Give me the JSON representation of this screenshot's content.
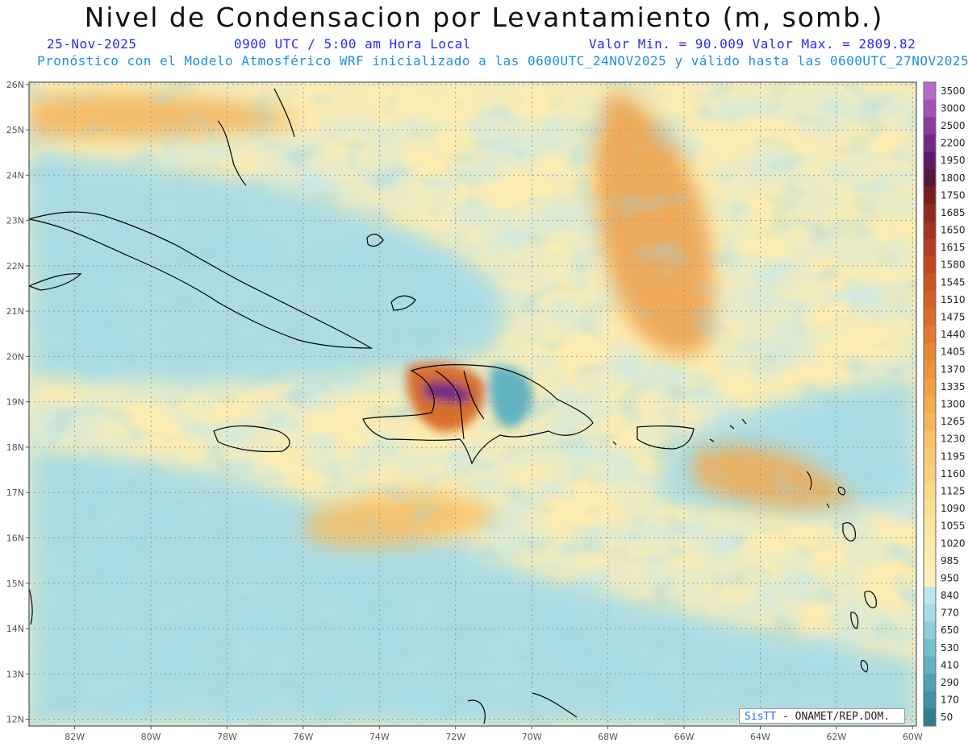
{
  "title": "Nivel de Condensacion por Levantamiento (m, somb.)",
  "header": {
    "date": "25-Nov-2025",
    "time": "0900 UTC / 5:00 am Hora Local",
    "min_max": "Valor Min. = 90.009  Valor Max. = 2809.82",
    "model_line": "Pronóstico con el Modelo Atmosférico WRF inicializado a las 0600UTC_24NOV2025 y válido hasta las  0600UTC_27NOV2025"
  },
  "stats": {
    "min": 90.009,
    "max": 2809.82
  },
  "map": {
    "lon_range": [
      -83.2,
      -59.9
    ],
    "lat_range": [
      11.85,
      26.05
    ],
    "lat_ticks": [
      {
        "value": 26,
        "label": "26N"
      },
      {
        "value": 25,
        "label": "25N"
      },
      {
        "value": 24,
        "label": "24N"
      },
      {
        "value": 23,
        "label": "23N"
      },
      {
        "value": 22,
        "label": "22N"
      },
      {
        "value": 21,
        "label": "21N"
      },
      {
        "value": 20,
        "label": "20N"
      },
      {
        "value": 19,
        "label": "19N"
      },
      {
        "value": 18,
        "label": "18N"
      },
      {
        "value": 17,
        "label": "17N"
      },
      {
        "value": 16,
        "label": "16N"
      },
      {
        "value": 15,
        "label": "15N"
      },
      {
        "value": 14,
        "label": "14N"
      },
      {
        "value": 13,
        "label": "13N"
      },
      {
        "value": 12,
        "label": "12N"
      }
    ],
    "lon_ticks": [
      {
        "value": -82,
        "label": "82W"
      },
      {
        "value": -80,
        "label": "80W"
      },
      {
        "value": -78,
        "label": "78W"
      },
      {
        "value": -76,
        "label": "76W"
      },
      {
        "value": -74,
        "label": "74W"
      },
      {
        "value": -72,
        "label": "72W"
      },
      {
        "value": -70,
        "label": "70W"
      },
      {
        "value": -68,
        "label": "68W"
      },
      {
        "value": -66,
        "label": "66W"
      },
      {
        "value": -64,
        "label": "64W"
      },
      {
        "value": -62,
        "label": "62W"
      },
      {
        "value": -60,
        "label": "60W"
      }
    ]
  },
  "colorbar": {
    "levels": [
      "3500",
      "3000",
      "2500",
      "2200",
      "1950",
      "1800",
      "1750",
      "1685",
      "1650",
      "1615",
      "1580",
      "1545",
      "1510",
      "1475",
      "1440",
      "1405",
      "1370",
      "1335",
      "1300",
      "1265",
      "1230",
      "1195",
      "1160",
      "1125",
      "1090",
      "1055",
      "1020",
      "985",
      "950",
      "840",
      "770",
      "650",
      "530",
      "410",
      "290",
      "170",
      "50"
    ],
    "colors": [
      "#b66cc4",
      "#a055b5",
      "#8a3e9c",
      "#742a82",
      "#5e1a66",
      "#56173e",
      "#7a1e22",
      "#922a1e",
      "#a3341e",
      "#b23f1f",
      "#bf4a20",
      "#c85622",
      "#d06226",
      "#d86e2b",
      "#df7a30",
      "#e58636",
      "#ea933e",
      "#ee9f48",
      "#f1ab52",
      "#f3b65d",
      "#f5c068",
      "#f6c973",
      "#f7d17e",
      "#f8d989",
      "#f9e094",
      "#fae6a0",
      "#fbeaaa",
      "#fcedb3",
      "#fdf0bc",
      "#bfe6ee",
      "#a5dbe6",
      "#8ccfdb",
      "#76c1cf",
      "#62b2c1",
      "#4fa1b2",
      "#3f90a3",
      "#2f7d92"
    ]
  },
  "credit": {
    "brand": "SisTT",
    "text": " - ONAMET/REP.DOM."
  }
}
